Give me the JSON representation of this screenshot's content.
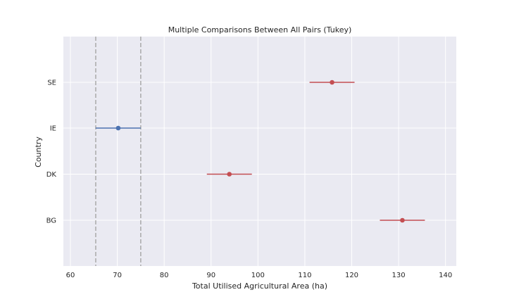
{
  "chart_data": {
    "type": "scatter",
    "title": "Multiple Comparisons Between All Pairs (Tukey)",
    "xlabel": "Total Utilised Agricultural Area (ha)",
    "ylabel": "Country",
    "xlim": [
      58.5,
      142.3
    ],
    "x_ticks": [
      "60",
      "70",
      "80",
      "90",
      "100",
      "110",
      "120",
      "130",
      "140"
    ],
    "x_tick_values": [
      60,
      70,
      80,
      90,
      100,
      110,
      120,
      130,
      140
    ],
    "categories": [
      "SE",
      "IE",
      "DK",
      "BG"
    ],
    "points": [
      {
        "label": "SE",
        "mean": 115.8,
        "lower": 111.0,
        "upper": 120.6,
        "color": "#c44e52"
      },
      {
        "label": "IE",
        "mean": 70.2,
        "lower": 65.4,
        "upper": 75.0,
        "color": "#4c72b0"
      },
      {
        "label": "DK",
        "mean": 93.9,
        "lower": 89.1,
        "upper": 98.7,
        "color": "#c44e52"
      },
      {
        "label": "BG",
        "mean": 130.8,
        "lower": 126.0,
        "upper": 135.6,
        "color": "#c44e52"
      }
    ],
    "reference_lines": [
      65.4,
      75.0
    ],
    "grid": true,
    "background": "#eaeaf2"
  }
}
